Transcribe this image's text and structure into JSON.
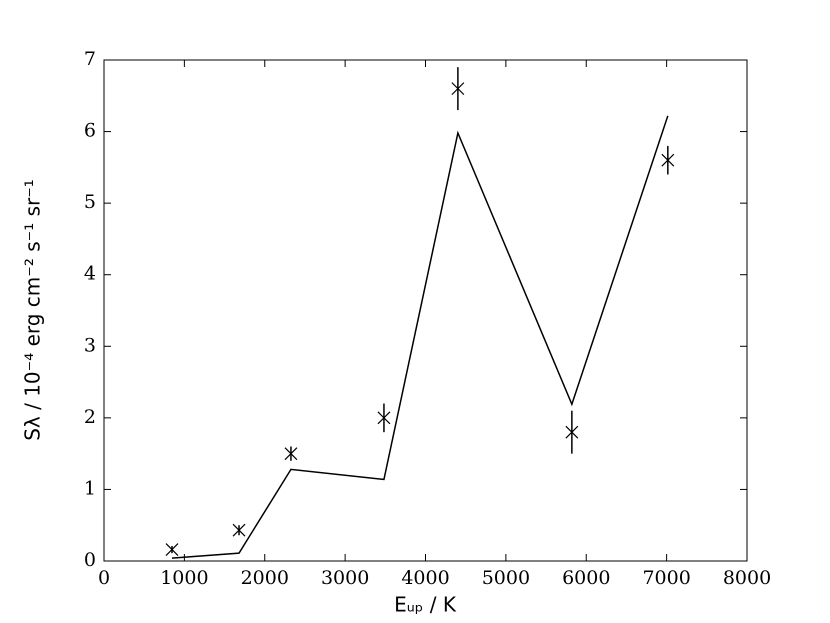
{
  "chart_data": {
    "type": "line",
    "xlabel": "Eᵤₚ / K",
    "ylabel": "Sλ / 10⁻⁴ erg cm⁻² s⁻¹ sr⁻¹",
    "x": [
      846,
      1680,
      2326,
      3483,
      4403,
      5821,
      7015
    ],
    "series": [
      {
        "type": "line",
        "color": "#000000",
        "values": [
          0.04,
          0.11,
          1.28,
          1.14,
          5.98,
          2.19,
          6.22
        ]
      },
      {
        "type": "errorbar",
        "color": "#000000",
        "values": [
          0.16,
          0.43,
          1.5,
          2.0,
          6.6,
          1.8,
          5.6
        ],
        "errors": [
          0.05,
          0.07,
          0.1,
          0.2,
          0.3,
          0.3,
          0.2
        ]
      }
    ],
    "xlim": [
      0,
      8000
    ],
    "xticks": [
      0,
      1000,
      2000,
      3000,
      4000,
      5000,
      6000,
      7000,
      8000
    ],
    "ylim": [
      0,
      7
    ],
    "yticks": [
      0,
      1,
      2,
      3,
      4,
      5,
      6,
      7
    ]
  }
}
